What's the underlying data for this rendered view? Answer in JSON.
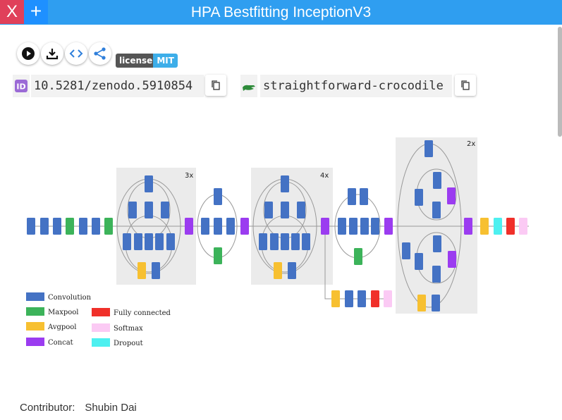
{
  "window": {
    "title": "HPA Bestfitting InceptionV3",
    "close_label": "X",
    "add_label": "+"
  },
  "toolbar": {
    "icons": [
      "play-icon",
      "download-icon",
      "code-icon",
      "share-icon"
    ]
  },
  "badge": {
    "left": "license",
    "right": "MIT"
  },
  "doi": {
    "value": "10.5281/zenodo.5910854"
  },
  "nickname": {
    "value": "straightforward-crocodile"
  },
  "figure": {
    "repeats": [
      "3x",
      "4x",
      "2x"
    ],
    "legend": [
      {
        "label": "Convolution",
        "color": "#4472c4"
      },
      {
        "label": "Maxpool",
        "color": "#3cb35a"
      },
      {
        "label": "Avgpool",
        "color": "#f7c031"
      },
      {
        "label": "Concat",
        "color": "#9b3cf0"
      },
      {
        "label": "Fully connected",
        "color": "#f0302a"
      },
      {
        "label": "Softmax",
        "color": "#fbcaf4"
      },
      {
        "label": "Dropout",
        "color": "#4df0f0"
      }
    ]
  },
  "contributor": {
    "label": "Contributor:",
    "name": "Shubin Dai"
  }
}
